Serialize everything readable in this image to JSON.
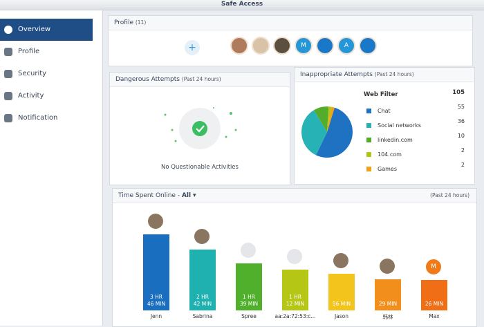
{
  "app_title": "Safe Access",
  "sidebar": {
    "items": [
      "Overview",
      "Profile",
      "Security",
      "Activity",
      "Notification"
    ],
    "selected": 0
  },
  "profile_panel": {
    "title": "Profile",
    "count": "(11)",
    "avatar_letters": [
      "M",
      "A"
    ]
  },
  "dangerous_panel": {
    "title": "Dangerous Attempts",
    "subtitle": "(Past 24 hours)",
    "message": "No Questionable Activities"
  },
  "inappropriate_panel": {
    "title": "Inappropriate Attempts",
    "subtitle": "(Past 24 hours)",
    "chart_data": {
      "type": "pie",
      "title": "Web Filter",
      "total": 105,
      "categories": [
        "Chat",
        "Social networks",
        "linkedin.com",
        "104.com",
        "Games"
      ],
      "values": [
        55,
        36,
        10,
        2,
        2
      ],
      "colors": [
        "#1f72c2",
        "#27b2b6",
        "#55ab2a",
        "#b3c512",
        "#f2a01a"
      ]
    }
  },
  "time_panel": {
    "title": "Time Spent Online - ",
    "filter": "All",
    "subtitle": "(Past 24 hours)",
    "chart_data": {
      "type": "bar",
      "categories": [
        "Jenn",
        "Sabrina",
        "Spree",
        "aa:2a:72:53:c...",
        "Jason",
        "韩林",
        "Max"
      ],
      "values": [
        226,
        162,
        99,
        72,
        56,
        29,
        26
      ],
      "value_labels": [
        "3 HR\n46 MIN",
        "2 HR\n42 MIN",
        "1 HR\n39 MIN",
        "1 HR\n12 MIN",
        "56 MIN",
        "29 MIN",
        "26 MIN"
      ],
      "colors": [
        "#1a6ec0",
        "#1fb0b0",
        "#50b02c",
        "#b5c614",
        "#f2c41c",
        "#f28e1c",
        "#ef6e16"
      ],
      "avatar_letters": [
        null,
        null,
        null,
        null,
        null,
        null,
        "M"
      ]
    }
  }
}
